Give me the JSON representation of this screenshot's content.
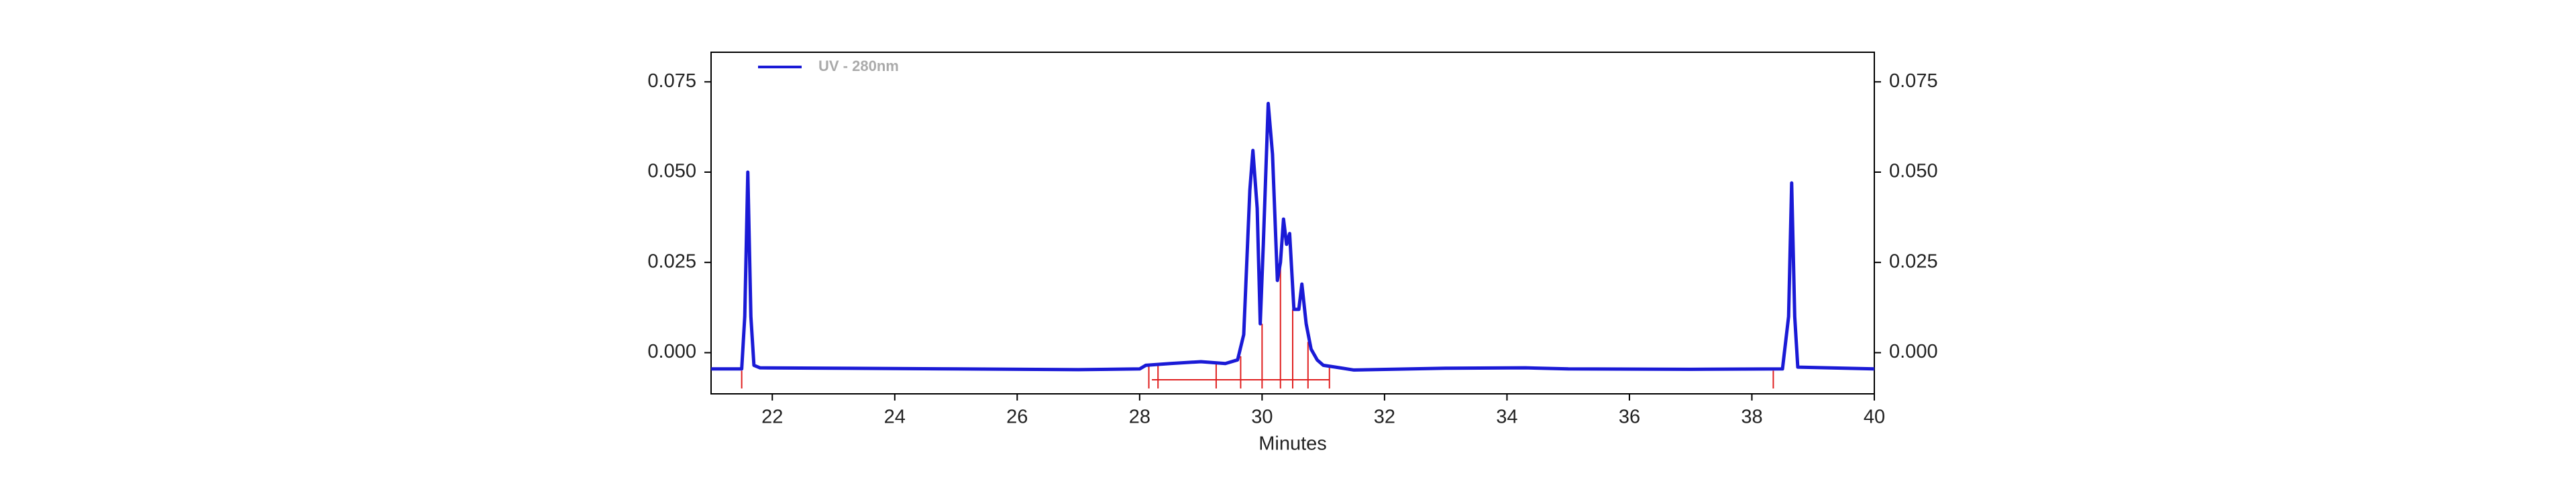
{
  "chart_data": {
    "type": "line",
    "xlabel": "Minutes",
    "xlim": [
      21,
      40
    ],
    "xticks": [
      22,
      24,
      26,
      28,
      30,
      32,
      34,
      36,
      38,
      40
    ],
    "ylim": [
      -0.0114,
      0.0832
    ],
    "yticks": [
      {
        "value": 0,
        "label": "0.000"
      },
      0.025,
      {
        "value": 0.05,
        "label": "0.050"
      },
      0.075
    ],
    "y2lim": [
      -0.0114,
      0.0832
    ],
    "y2ticks": [
      {
        "value": 0,
        "label": "0.000"
      },
      0.025,
      {
        "value": 0.05,
        "label": "0.050"
      },
      0.075
    ],
    "legend": "top-left",
    "series": [
      {
        "name": "UV - 280nm",
        "color": "#1a1ad6",
        "x": [
          21.0,
          21.5,
          21.55,
          21.6,
          21.65,
          21.7,
          21.8,
          23,
          25,
          27,
          28.0,
          28.1,
          28.5,
          29.0,
          29.4,
          29.6,
          29.7,
          29.8,
          29.85,
          29.92,
          29.97,
          30.02,
          30.1,
          30.17,
          30.25,
          30.3,
          30.35,
          30.4,
          30.45,
          30.52,
          30.6,
          30.65,
          30.72,
          30.8,
          30.9,
          31.0,
          31.2,
          31.5,
          33,
          34.3,
          35,
          37,
          38.5,
          38.6,
          38.65,
          38.7,
          38.75,
          40
        ],
        "values": [
          -0.0045,
          -0.0045,
          0.01,
          0.05,
          0.01,
          -0.0035,
          -0.0042,
          -0.0043,
          -0.0045,
          -0.0047,
          -0.0045,
          -0.0035,
          -0.003,
          -0.0025,
          -0.003,
          -0.002,
          0.005,
          0.045,
          0.056,
          0.04,
          0.008,
          0.03,
          0.069,
          0.055,
          0.02,
          0.025,
          0.037,
          0.03,
          0.033,
          0.012,
          0.012,
          0.019,
          0.008,
          0.001,
          -0.002,
          -0.0035,
          -0.004,
          -0.0048,
          -0.0043,
          -0.0042,
          -0.0045,
          -0.0046,
          -0.0045,
          0.01,
          0.047,
          0.01,
          -0.004,
          -0.0045
        ]
      }
    ],
    "markers": {
      "color": "#e02020",
      "x": [
        21.5,
        28.15,
        28.3,
        29.25,
        29.65,
        30.0,
        30.3,
        30.5,
        30.75,
        31.1,
        38.35
      ],
      "y": [
        -0.005,
        -0.0035,
        -0.003,
        -0.003,
        -0.001,
        0.008,
        0.025,
        0.012,
        0.003,
        -0.004,
        -0.005
      ]
    },
    "baseline": {
      "color": "#e02020",
      "x": [
        28.2,
        31.1
      ],
      "y": [
        -0.0075,
        -0.0075
      ]
    }
  }
}
